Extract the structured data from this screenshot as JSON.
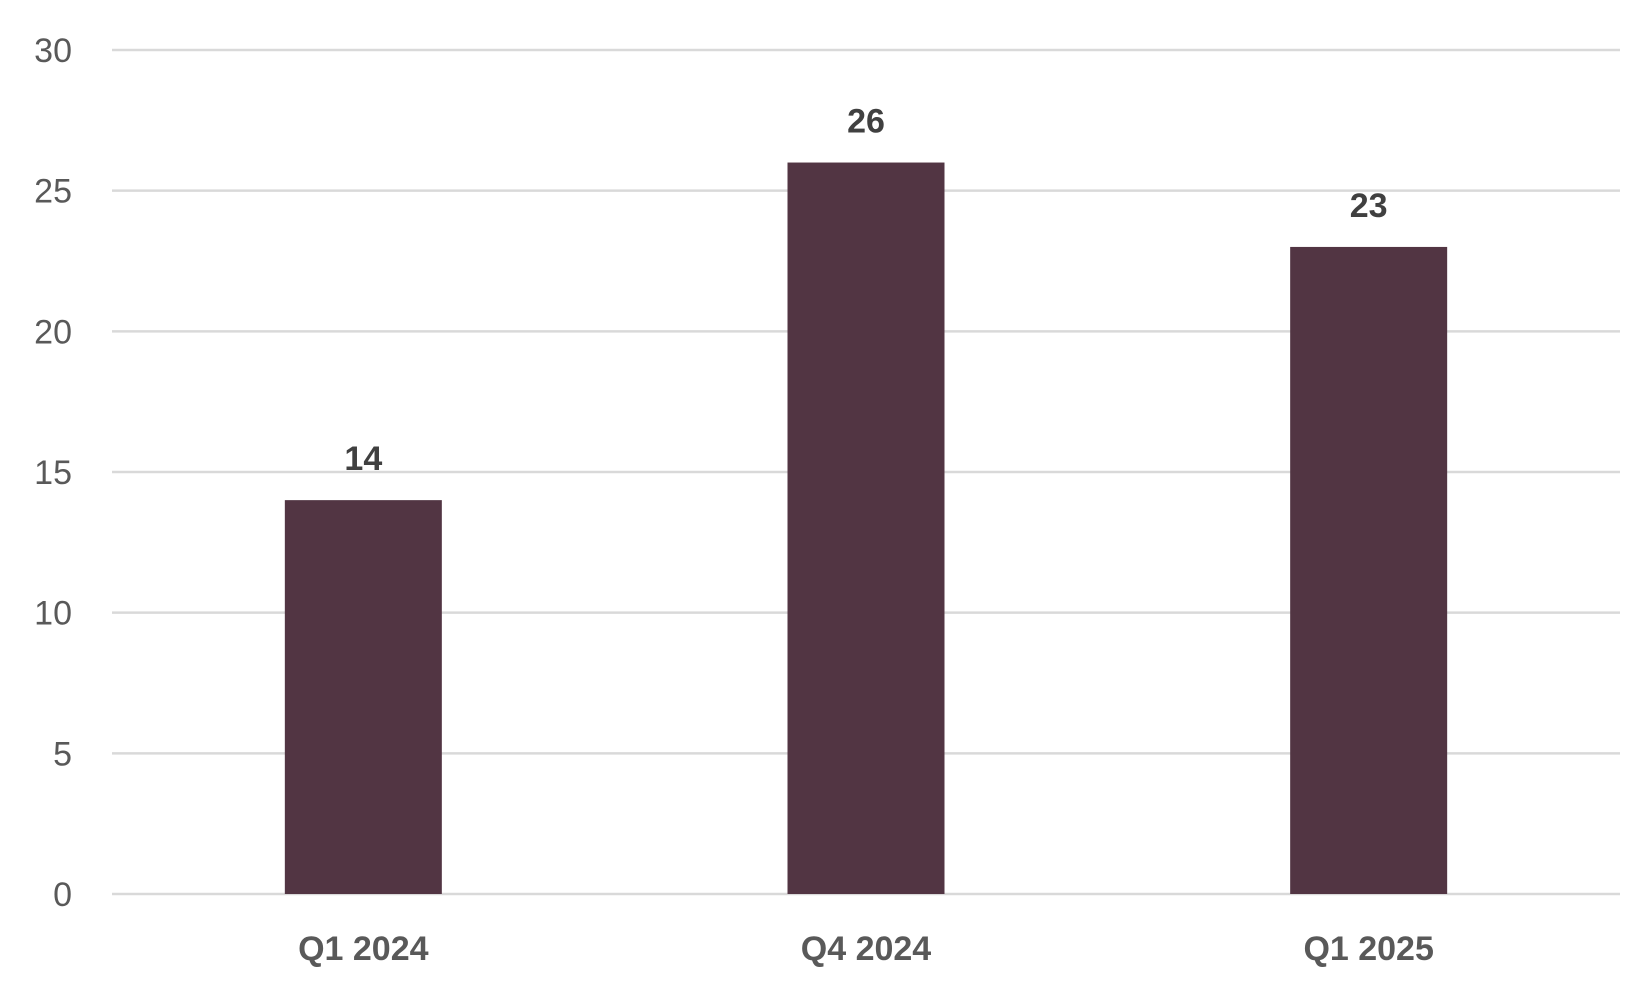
{
  "chart_data": {
    "type": "bar",
    "title": "",
    "xlabel": "",
    "ylabel": "",
    "categories": [
      "Q1 2024",
      "Q4 2024",
      "Q1 2025"
    ],
    "values": [
      14,
      26,
      23
    ],
    "data_labels": [
      "14",
      "26",
      "23"
    ],
    "ylim": [
      0,
      30
    ],
    "yticks": [
      0,
      5,
      10,
      15,
      20,
      25,
      30
    ],
    "ytick_labels": [
      "0",
      "5",
      "10",
      "15",
      "20",
      "25",
      "30"
    ],
    "grid": true,
    "legend": "none",
    "bar_color": "#523543"
  }
}
